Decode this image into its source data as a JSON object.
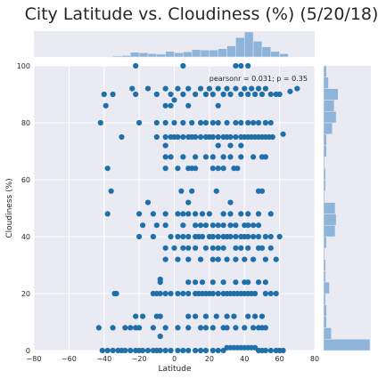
{
  "chart_data": {
    "type": "scatter",
    "title": "City Latitude vs. Cloudiness (%) (5/20/18)",
    "xlabel": "Latitude",
    "ylabel": "Cloudiness (%)",
    "xlim": [
      -80,
      80
    ],
    "ylim": [
      0,
      100
    ],
    "xticks": [
      "−80",
      "−60",
      "−40",
      "−20",
      "0",
      "20",
      "40",
      "60",
      "80"
    ],
    "yticks": [
      "0",
      "20",
      "40",
      "60",
      "80",
      "100"
    ],
    "annotation": "pearsonr = 0.031; p = 0.35",
    "grid": true,
    "point_color": "#1f6fab",
    "hist_color": "#8eb4d9",
    "background_color": "#eaeaf2",
    "marginal_x_hist": {
      "bin_edges": [
        -80,
        -75,
        -70,
        -65,
        -60,
        -55,
        -50,
        -45,
        -40,
        -35,
        -30,
        -25,
        -20,
        -15,
        -10,
        -5,
        0,
        5,
        10,
        15,
        20,
        25,
        30,
        35,
        40,
        45,
        50,
        55,
        60,
        65,
        70,
        75,
        80
      ],
      "counts": [
        0,
        0,
        0,
        0,
        0,
        0,
        0,
        0,
        1,
        2,
        3,
        10,
        9,
        7,
        6,
        12,
        9,
        11,
        16,
        15,
        15,
        18,
        24,
        42,
        54,
        34,
        22,
        12,
        7,
        1,
        0,
        0
      ]
    },
    "marginal_y_hist": {
      "bin_edges": [
        0,
        4,
        8,
        12,
        16,
        20,
        24,
        28,
        32,
        36,
        40,
        44,
        48,
        52,
        56,
        60,
        64,
        68,
        72,
        76,
        80,
        84,
        88,
        92,
        96,
        100
      ],
      "counts": [
        48,
        8,
        3,
        3,
        2,
        6,
        2,
        2,
        1,
        3,
        12,
        13,
        12,
        1,
        2,
        2,
        1,
        3,
        3,
        9,
        13,
        11,
        15,
        5,
        3
      ]
    },
    "points": [
      [
        -41,
        0
      ],
      [
        -38,
        0
      ],
      [
        -35,
        0
      ],
      [
        -32,
        0
      ],
      [
        -30,
        0
      ],
      [
        -28,
        0
      ],
      [
        -25,
        0
      ],
      [
        -22,
        0
      ],
      [
        -20,
        0
      ],
      [
        -18,
        0
      ],
      [
        -15,
        0
      ],
      [
        -12,
        0
      ],
      [
        -10,
        0
      ],
      [
        -8,
        0
      ],
      [
        -5,
        0
      ],
      [
        -2,
        0
      ],
      [
        2,
        0
      ],
      [
        5,
        0
      ],
      [
        8,
        0
      ],
      [
        12,
        0
      ],
      [
        15,
        0
      ],
      [
        18,
        0
      ],
      [
        22,
        0
      ],
      [
        25,
        0
      ],
      [
        28,
        0
      ],
      [
        30,
        1
      ],
      [
        32,
        1
      ],
      [
        34,
        1
      ],
      [
        36,
        1
      ],
      [
        38,
        1
      ],
      [
        40,
        1
      ],
      [
        42,
        1
      ],
      [
        44,
        1
      ],
      [
        46,
        1
      ],
      [
        48,
        0
      ],
      [
        50,
        0
      ],
      [
        52,
        0
      ],
      [
        55,
        0
      ],
      [
        58,
        0
      ],
      [
        60,
        0
      ],
      [
        62,
        0
      ],
      [
        -43,
        8
      ],
      [
        -35,
        8
      ],
      [
        -28,
        8
      ],
      [
        -25,
        8
      ],
      [
        -22,
        8
      ],
      [
        -20,
        8
      ],
      [
        -12,
        8
      ],
      [
        -5,
        8
      ],
      [
        2,
        8
      ],
      [
        8,
        8
      ],
      [
        15,
        8
      ],
      [
        18,
        8
      ],
      [
        22,
        8
      ],
      [
        28,
        8
      ],
      [
        30,
        8
      ],
      [
        35,
        8
      ],
      [
        40,
        8
      ],
      [
        45,
        8
      ],
      [
        48,
        8
      ],
      [
        50,
        8
      ],
      [
        52,
        8
      ],
      [
        -8,
        5
      ],
      [
        -22,
        12
      ],
      [
        -18,
        12
      ],
      [
        -10,
        12
      ],
      [
        -8,
        12
      ],
      [
        8,
        12
      ],
      [
        12,
        12
      ],
      [
        18,
        12
      ],
      [
        24,
        12
      ],
      [
        30,
        12
      ],
      [
        34,
        12
      ],
      [
        42,
        12
      ],
      [
        46,
        12
      ],
      [
        50,
        12
      ],
      [
        -34,
        20
      ],
      [
        -33,
        20
      ],
      [
        -12,
        20
      ],
      [
        -10,
        20
      ],
      [
        -8,
        20
      ],
      [
        -5,
        20
      ],
      [
        -2,
        20
      ],
      [
        2,
        20
      ],
      [
        5,
        20
      ],
      [
        8,
        20
      ],
      [
        12,
        20
      ],
      [
        14,
        20
      ],
      [
        16,
        20
      ],
      [
        18,
        20
      ],
      [
        20,
        20
      ],
      [
        22,
        20
      ],
      [
        25,
        20
      ],
      [
        28,
        20
      ],
      [
        30,
        20
      ],
      [
        32,
        20
      ],
      [
        34,
        20
      ],
      [
        36,
        20
      ],
      [
        38,
        20
      ],
      [
        40,
        20
      ],
      [
        42,
        20
      ],
      [
        44,
        20
      ],
      [
        46,
        20
      ],
      [
        52,
        20
      ],
      [
        55,
        20
      ],
      [
        58,
        20
      ],
      [
        -8,
        24
      ],
      [
        8,
        24
      ],
      [
        12,
        24
      ],
      [
        16,
        24
      ],
      [
        22,
        24
      ],
      [
        28,
        24
      ],
      [
        35,
        24
      ],
      [
        40,
        24
      ],
      [
        42,
        24
      ],
      [
        48,
        24
      ],
      [
        52,
        24
      ],
      [
        -8,
        25
      ],
      [
        -5,
        32
      ],
      [
        2,
        32
      ],
      [
        8,
        32
      ],
      [
        15,
        32
      ],
      [
        22,
        32
      ],
      [
        25,
        32
      ],
      [
        30,
        32
      ],
      [
        35,
        32
      ],
      [
        40,
        32
      ],
      [
        45,
        32
      ],
      [
        52,
        32
      ],
      [
        58,
        32
      ],
      [
        -5,
        36
      ],
      [
        0,
        36
      ],
      [
        5,
        36
      ],
      [
        8,
        36
      ],
      [
        12,
        36
      ],
      [
        18,
        36
      ],
      [
        22,
        36
      ],
      [
        25,
        36
      ],
      [
        28,
        36
      ],
      [
        35,
        36
      ],
      [
        38,
        36
      ],
      [
        42,
        36
      ],
      [
        48,
        36
      ],
      [
        50,
        36
      ],
      [
        55,
        36
      ],
      [
        -20,
        40
      ],
      [
        -12,
        40
      ],
      [
        -2,
        40
      ],
      [
        2,
        40
      ],
      [
        5,
        40
      ],
      [
        8,
        40
      ],
      [
        12,
        40
      ],
      [
        14,
        40
      ],
      [
        16,
        40
      ],
      [
        20,
        40
      ],
      [
        22,
        40
      ],
      [
        25,
        40
      ],
      [
        28,
        40
      ],
      [
        30,
        40
      ],
      [
        32,
        40
      ],
      [
        35,
        40
      ],
      [
        38,
        40
      ],
      [
        40,
        40
      ],
      [
        42,
        40
      ],
      [
        45,
        40
      ],
      [
        48,
        40
      ],
      [
        52,
        40
      ],
      [
        55,
        40
      ],
      [
        60,
        40
      ],
      [
        -18,
        44
      ],
      [
        -10,
        44
      ],
      [
        -5,
        44
      ],
      [
        5,
        44
      ],
      [
        12,
        44
      ],
      [
        15,
        44
      ],
      [
        18,
        44
      ],
      [
        22,
        44
      ],
      [
        25,
        44
      ],
      [
        28,
        44
      ],
      [
        32,
        44
      ],
      [
        35,
        44
      ],
      [
        40,
        44
      ],
      [
        42,
        44
      ],
      [
        45,
        44
      ],
      [
        48,
        44
      ],
      [
        -38,
        48
      ],
      [
        -20,
        48
      ],
      [
        -12,
        48
      ],
      [
        -5,
        48
      ],
      [
        2,
        48
      ],
      [
        5,
        48
      ],
      [
        8,
        48
      ],
      [
        12,
        48
      ],
      [
        16,
        48
      ],
      [
        20,
        48
      ],
      [
        28,
        48
      ],
      [
        32,
        48
      ],
      [
        38,
        48
      ],
      [
        42,
        48
      ],
      [
        48,
        48
      ],
      [
        55,
        48
      ],
      [
        -15,
        52
      ],
      [
        8,
        52
      ],
      [
        32,
        52
      ],
      [
        -36,
        56
      ],
      [
        4,
        56
      ],
      [
        10,
        56
      ],
      [
        24,
        56
      ],
      [
        48,
        56
      ],
      [
        50,
        56
      ],
      [
        -38,
        64
      ],
      [
        -5,
        64
      ],
      [
        2,
        64
      ],
      [
        8,
        64
      ],
      [
        10,
        64
      ],
      [
        12,
        64
      ],
      [
        22,
        64
      ],
      [
        25,
        64
      ],
      [
        28,
        64
      ],
      [
        34,
        64
      ],
      [
        36,
        64
      ],
      [
        -5,
        68
      ],
      [
        -2,
        68
      ],
      [
        5,
        68
      ],
      [
        12,
        68
      ],
      [
        18,
        68
      ],
      [
        22,
        68
      ],
      [
        28,
        68
      ],
      [
        32,
        68
      ],
      [
        38,
        68
      ],
      [
        45,
        68
      ],
      [
        50,
        68
      ],
      [
        52,
        68
      ],
      [
        -5,
        72
      ],
      [
        25,
        72
      ],
      [
        32,
        72
      ],
      [
        38,
        72
      ],
      [
        -42,
        80
      ],
      [
        -20,
        80
      ],
      [
        -10,
        80
      ],
      [
        -5,
        80
      ],
      [
        0,
        80
      ],
      [
        5,
        80
      ],
      [
        10,
        80
      ],
      [
        15,
        80
      ],
      [
        18,
        80
      ],
      [
        22,
        80
      ],
      [
        25,
        80
      ],
      [
        30,
        80
      ],
      [
        35,
        80
      ],
      [
        38,
        80
      ],
      [
        42,
        80
      ],
      [
        45,
        80
      ],
      [
        48,
        80
      ],
      [
        52,
        80
      ],
      [
        55,
        80
      ],
      [
        -30,
        75
      ],
      [
        -10,
        75
      ],
      [
        -5,
        75
      ],
      [
        -2,
        75
      ],
      [
        0,
        75
      ],
      [
        2,
        75
      ],
      [
        5,
        75
      ],
      [
        8,
        75
      ],
      [
        10,
        75
      ],
      [
        12,
        75
      ],
      [
        15,
        75
      ],
      [
        18,
        75
      ],
      [
        20,
        75
      ],
      [
        22,
        75
      ],
      [
        25,
        75
      ],
      [
        28,
        75
      ],
      [
        30,
        75
      ],
      [
        32,
        75
      ],
      [
        35,
        75
      ],
      [
        38,
        75
      ],
      [
        40,
        75
      ],
      [
        42,
        75
      ],
      [
        44,
        75
      ],
      [
        46,
        75
      ],
      [
        48,
        75
      ],
      [
        50,
        75
      ],
      [
        52,
        75
      ],
      [
        54,
        75
      ],
      [
        56,
        75
      ],
      [
        62,
        76
      ],
      [
        -40,
        90
      ],
      [
        -35,
        90
      ],
      [
        -24,
        92
      ],
      [
        -22,
        90
      ],
      [
        -15,
        92
      ],
      [
        -10,
        90
      ],
      [
        -5,
        92
      ],
      [
        -2,
        90
      ],
      [
        0,
        88
      ],
      [
        2,
        92
      ],
      [
        5,
        90
      ],
      [
        8,
        92
      ],
      [
        12,
        90
      ],
      [
        15,
        92
      ],
      [
        18,
        90
      ],
      [
        20,
        92
      ],
      [
        22,
        90
      ],
      [
        25,
        92
      ],
      [
        28,
        90
      ],
      [
        30,
        92
      ],
      [
        32,
        90
      ],
      [
        35,
        92
      ],
      [
        38,
        90
      ],
      [
        40,
        92
      ],
      [
        42,
        90
      ],
      [
        44,
        92
      ],
      [
        46,
        90
      ],
      [
        48,
        92
      ],
      [
        50,
        90
      ],
      [
        52,
        92
      ],
      [
        55,
        90
      ],
      [
        58,
        90
      ],
      [
        60,
        90
      ],
      [
        66,
        91
      ],
      [
        70,
        92
      ],
      [
        -39,
        86
      ],
      [
        -5,
        86
      ],
      [
        -2,
        86
      ],
      [
        8,
        86
      ],
      [
        25,
        86
      ],
      [
        -22,
        100
      ],
      [
        5,
        100
      ],
      [
        35,
        100
      ],
      [
        38,
        100
      ],
      [
        42,
        100
      ]
    ]
  }
}
